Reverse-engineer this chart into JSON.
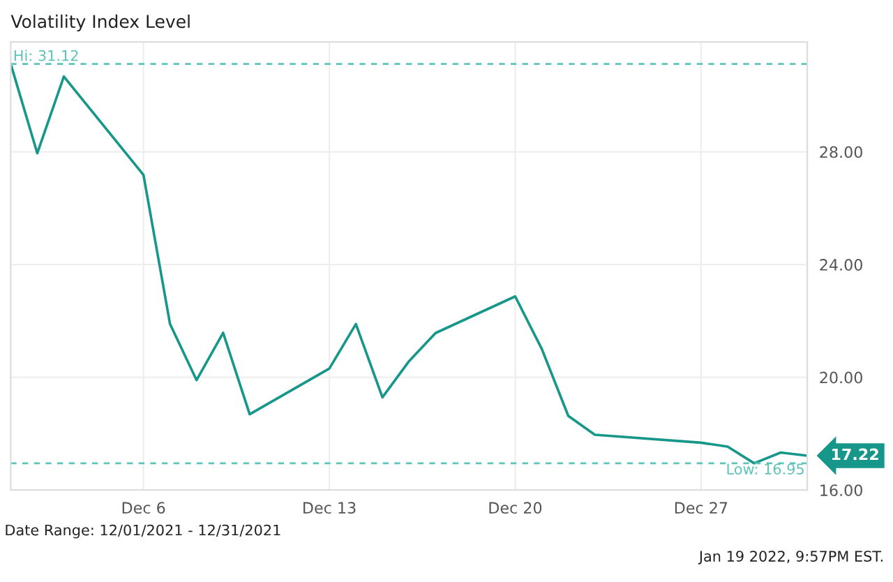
{
  "chart_data": {
    "type": "line",
    "title": "Volatility Index Level",
    "x": [
      "2021-12-01",
      "2021-12-02",
      "2021-12-03",
      "2021-12-06",
      "2021-12-07",
      "2021-12-08",
      "2021-12-09",
      "2021-12-10",
      "2021-12-13",
      "2021-12-14",
      "2021-12-15",
      "2021-12-16",
      "2021-12-17",
      "2021-12-20",
      "2021-12-21",
      "2021-12-22",
      "2021-12-23",
      "2021-12-27",
      "2021-12-28",
      "2021-12-29",
      "2021-12-30",
      "2021-12-31"
    ],
    "series": [
      {
        "color": "#17978a",
        "values": [
          31.12,
          27.95,
          30.67,
          27.18,
          21.89,
          19.9,
          21.58,
          18.69,
          20.31,
          21.89,
          19.29,
          20.57,
          21.57,
          22.87,
          21.01,
          18.63,
          17.96,
          17.68,
          17.54,
          16.95,
          17.33,
          17.22
        ],
        "value_labels": [
          null,
          null,
          null,
          null,
          null,
          null,
          null,
          null,
          null,
          null,
          null,
          null,
          null,
          null,
          null,
          null,
          null,
          null,
          null,
          null,
          null,
          "17.22"
        ]
      }
    ],
    "xlim": [
      "2021-12-01",
      "2021-12-31"
    ],
    "xticks": [
      {
        "value": "2021-12-06",
        "label": "Dec 6"
      },
      {
        "value": "2021-12-13",
        "label": "Dec 13"
      },
      {
        "value": "2021-12-20",
        "label": "Dec 20"
      },
      {
        "value": "2021-12-27",
        "label": "Dec 27"
      }
    ],
    "ylim": [
      16,
      31.9
    ],
    "yticks": [
      {
        "value": 16,
        "label": "16.00"
      },
      {
        "value": 20,
        "label": "20.00"
      },
      {
        "value": 24,
        "label": "24.00"
      },
      {
        "value": 28,
        "label": "28.00"
      }
    ],
    "ref_lines": [
      {
        "axis": "y",
        "value": 31.12,
        "label": "Hi: 31.12",
        "color": "#5cc4b8",
        "line_style": "dashed"
      },
      {
        "axis": "y",
        "value": 16.95,
        "label": "Low: 16.95",
        "color": "#5cc4b8",
        "line_style": "dashed"
      }
    ],
    "annotations": [
      "Date Range: 12/01/2021 - 12/31/2021",
      "Jan 19 2022, 9:57PM EST."
    ],
    "grid": true,
    "marker": "none",
    "line_style": "solid"
  }
}
